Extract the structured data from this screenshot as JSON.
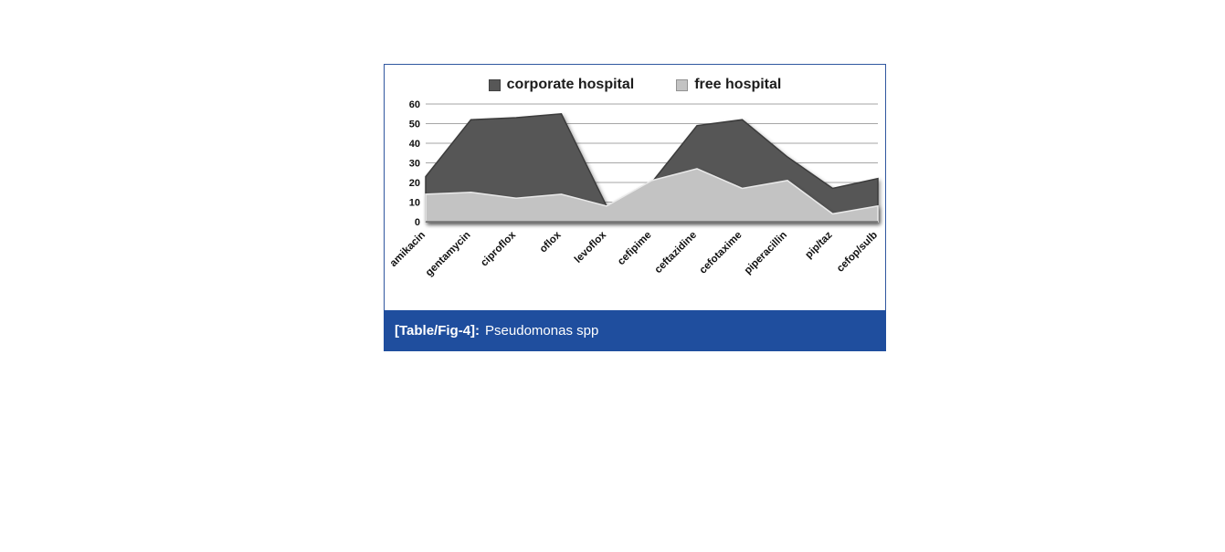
{
  "figure": {
    "caption_label": "[Table/Fig-4]:",
    "caption_text": "Pseudomonas spp",
    "caption_bg": "#1f4e9e",
    "border_color": "#30579f"
  },
  "chart_data": {
    "type": "area",
    "title": "",
    "xlabel": "",
    "ylabel": "",
    "categories": [
      "amikacin",
      "gentamycin",
      "ciproflox",
      "oflox",
      "levoflox",
      "cefipime",
      "ceftazidine",
      "cefotaxime",
      "piperacillin",
      "pip/taz",
      "cefop/sulb"
    ],
    "series": [
      {
        "name": "corporate hospital",
        "color": "#575757",
        "edge": "#3b3b3b",
        "values": [
          23,
          52,
          53,
          55,
          8,
          20,
          49,
          52,
          33,
          17,
          22
        ]
      },
      {
        "name": "free hospital",
        "color": "#c3c3c3",
        "edge": "#e9e9e9",
        "values": [
          14,
          15,
          12,
          14,
          8,
          21,
          27,
          17,
          21,
          4,
          8
        ]
      }
    ],
    "ylim": [
      0,
      60
    ],
    "yticks": [
      0,
      10,
      20,
      30,
      40,
      50,
      60
    ],
    "grid": true,
    "gridline_color": "#a6a6a6",
    "legend_position": "top"
  }
}
